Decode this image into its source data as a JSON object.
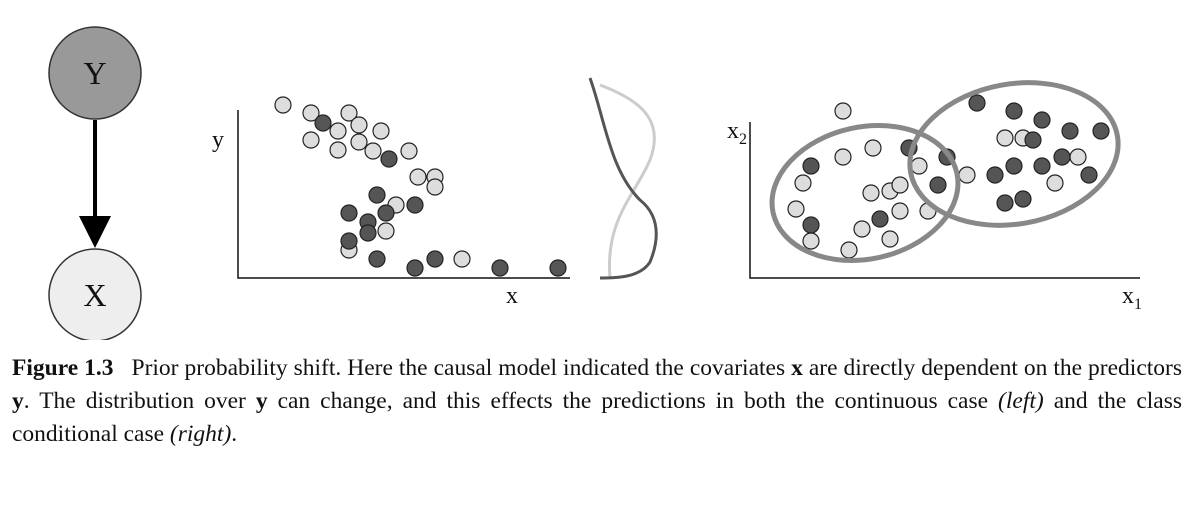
{
  "graph": {
    "nodes": [
      {
        "label": "Y"
      },
      {
        "label": "X"
      }
    ]
  },
  "left_plot": {
    "y_label": "y",
    "x_label": "x"
  },
  "right_plot": {
    "y_label": "x",
    "y_label_sub": "2",
    "x_label": "x",
    "x_label_sub": "1"
  },
  "caption": {
    "label": "Figure 1.3",
    "parts": [
      "Prior probability shift. Here the causal model indicated the covariates ",
      "x",
      " are directly dependent on the predictors ",
      "y",
      ". The distribution over ",
      "y",
      " can change, and this effects the predictions in both the continuous case ",
      "(left)",
      " and the class conditional case ",
      "(right)",
      "."
    ]
  }
}
